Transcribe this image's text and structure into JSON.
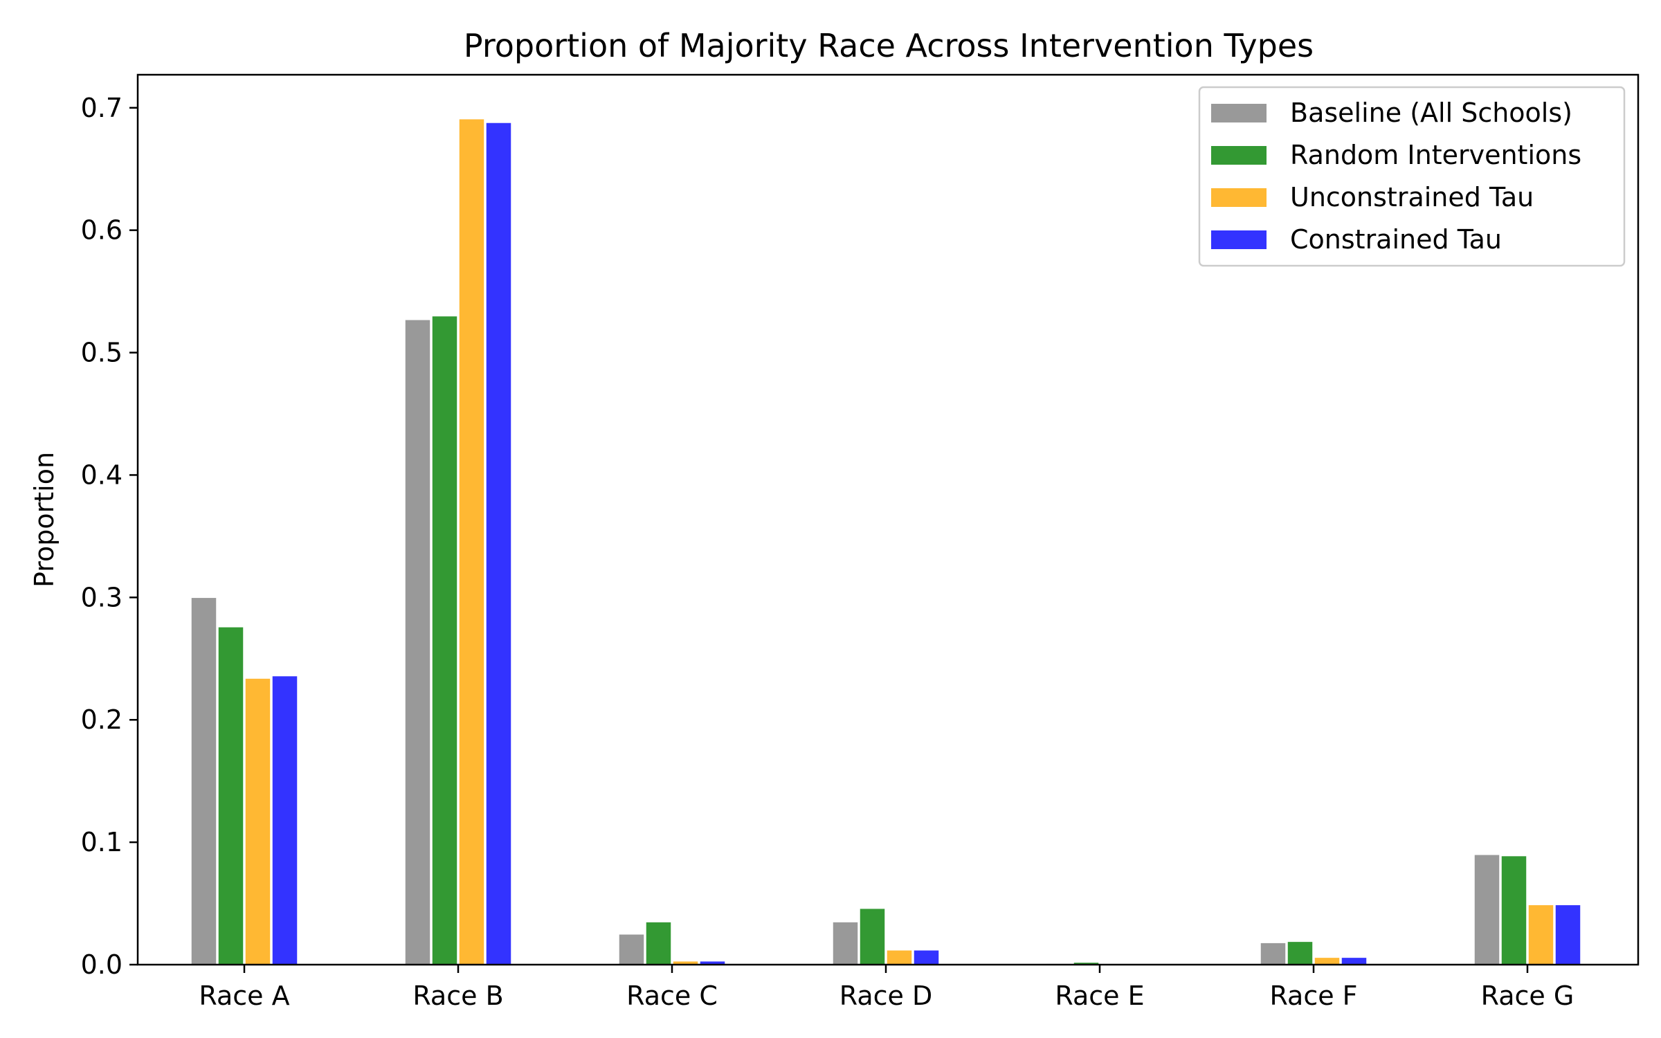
{
  "chart_data": {
    "type": "bar",
    "title": "Proportion of Majority Race Across Intervention Types",
    "xlabel": "",
    "ylabel": "Proportion",
    "ylim": [
      0,
      0.727
    ],
    "yticks": [
      0.0,
      0.1,
      0.2,
      0.3,
      0.4,
      0.5,
      0.6,
      0.7
    ],
    "ytick_labels": [
      "0.0",
      "0.1",
      "0.2",
      "0.3",
      "0.4",
      "0.5",
      "0.6",
      "0.7"
    ],
    "categories": [
      "Race A",
      "Race B",
      "Race C",
      "Race D",
      "Race E",
      "Race F",
      "Race G"
    ],
    "series": [
      {
        "name": "Baseline (All Schools)",
        "color": "#999999",
        "values": [
          0.3,
          0.527,
          0.025,
          0.035,
          0.001,
          0.018,
          0.09
        ]
      },
      {
        "name": "Random Interventions",
        "color": "#339933",
        "values": [
          0.276,
          0.53,
          0.035,
          0.046,
          0.002,
          0.019,
          0.089
        ]
      },
      {
        "name": "Unconstrained Tau",
        "color": "#ffb833",
        "values": [
          0.234,
          0.691,
          0.003,
          0.012,
          0.0005,
          0.006,
          0.049
        ]
      },
      {
        "name": "Constrained Tau",
        "color": "#3333ff",
        "values": [
          0.236,
          0.688,
          0.003,
          0.012,
          0.0005,
          0.006,
          0.049
        ]
      }
    ],
    "grid": false,
    "legend": "top-right"
  }
}
